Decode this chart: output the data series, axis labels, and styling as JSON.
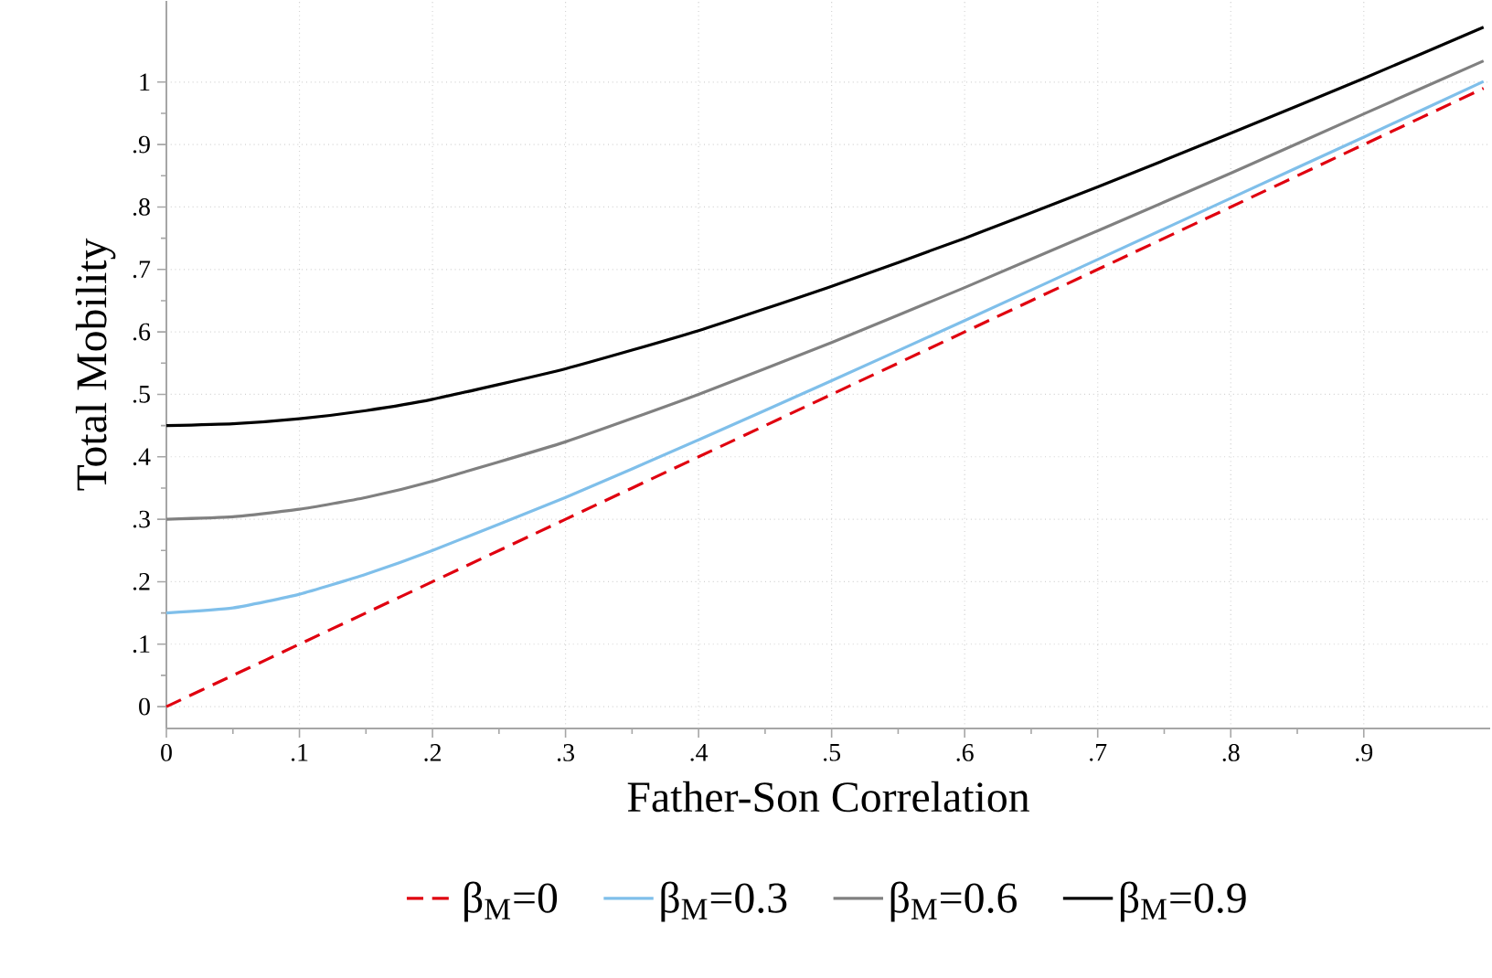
{
  "chart_data": {
    "type": "line",
    "xlabel": "Father-Son Correlation",
    "ylabel": "Total Mobility",
    "x": [
      0,
      0.05,
      0.1,
      0.15,
      0.2,
      0.3,
      0.4,
      0.5,
      0.6,
      0.7,
      0.8,
      0.9,
      0.99
    ],
    "xlim": [
      0,
      0.995
    ],
    "ylim": [
      -0.035,
      1.13
    ],
    "xticks": [
      0,
      {
        "value": 0.1,
        "label": ".1"
      },
      {
        "value": 0.2,
        "label": ".2"
      },
      {
        "value": 0.3,
        "label": ".3"
      },
      {
        "value": 0.4,
        "label": ".4"
      },
      {
        "value": 0.5,
        "label": ".5"
      },
      {
        "value": 0.6,
        "label": ".6"
      },
      {
        "value": 0.7,
        "label": ".7"
      },
      {
        "value": 0.8,
        "label": ".8"
      },
      {
        "value": 0.9,
        "label": ".9"
      }
    ],
    "yticks": [
      0,
      {
        "value": 0.1,
        "label": ".1"
      },
      {
        "value": 0.2,
        "label": ".2"
      },
      {
        "value": 0.3,
        "label": ".3"
      },
      {
        "value": 0.4,
        "label": ".4"
      },
      {
        "value": 0.5,
        "label": ".5"
      },
      {
        "value": 0.6,
        "label": ".6"
      },
      {
        "value": 0.7,
        "label": ".7"
      },
      {
        "value": 0.8,
        "label": ".8"
      },
      {
        "value": 0.9,
        "label": ".9"
      },
      1
    ],
    "grid": true,
    "legend": "bottom",
    "marker": "none",
    "series": [
      {
        "name": "β$_{M}$=0",
        "color": "#e0000f",
        "line_style": "dashed",
        "values": [
          0,
          0.05,
          0.1,
          0.15,
          0.2,
          0.3,
          0.4,
          0.5,
          0.6,
          0.7,
          0.8,
          0.9,
          0.99
        ]
      },
      {
        "name": "β$_{M}$=0.3",
        "color": "#7fbfea",
        "line_style": "solid",
        "values": [
          0.15,
          0.158,
          0.18,
          0.212,
          0.25,
          0.335,
          0.427,
          0.522,
          0.618,
          0.716,
          0.814,
          0.912,
          1.001
        ]
      },
      {
        "name": "β$_{M}$=0.6",
        "color": "#808080",
        "line_style": "solid",
        "values": [
          0.3,
          0.304,
          0.316,
          0.335,
          0.361,
          0.424,
          0.5,
          0.583,
          0.671,
          0.762,
          0.854,
          0.949,
          1.034
        ]
      },
      {
        "name": "β$_{M}$=0.9",
        "color": "#000000",
        "line_style": "solid",
        "values": [
          0.45,
          0.453,
          0.461,
          0.474,
          0.492,
          0.541,
          0.602,
          0.673,
          0.75,
          0.832,
          0.918,
          1.006,
          1.088
        ]
      }
    ]
  }
}
